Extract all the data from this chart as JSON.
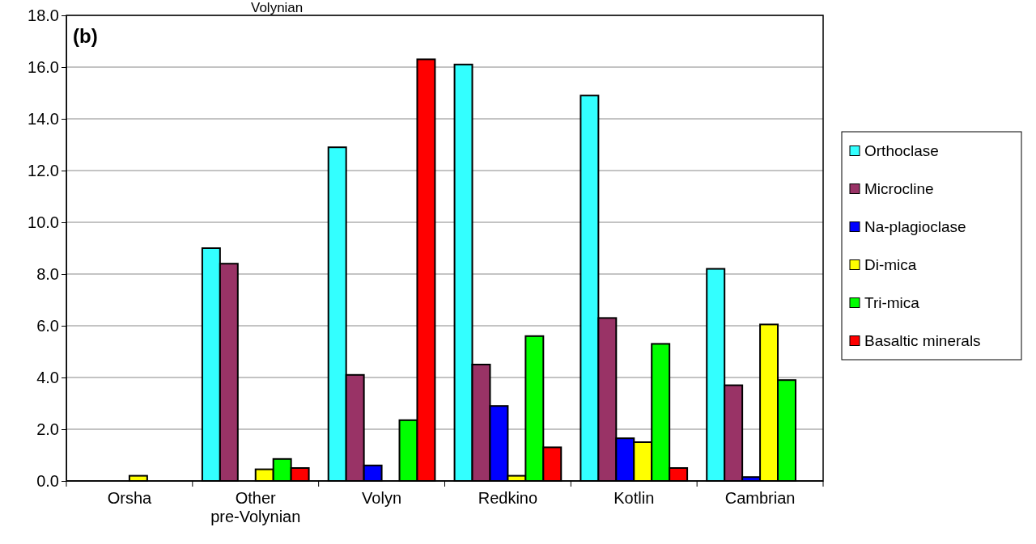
{
  "chart_data": {
    "type": "bar",
    "categories": [
      "Orsha",
      "Other pre-Volynian",
      "Volyn",
      "Redkino",
      "Kotlin",
      "Cambrian"
    ],
    "series": [
      {
        "name": "Orthoclase",
        "color": "#33ffff",
        "values": [
          0,
          9.0,
          12.9,
          16.1,
          14.9,
          8.2
        ]
      },
      {
        "name": "Microcline",
        "color": "#993366",
        "values": [
          0,
          8.4,
          4.1,
          4.5,
          6.3,
          3.7
        ]
      },
      {
        "name": "Na-plagioclase",
        "color": "#0000ff",
        "values": [
          0,
          0,
          0.6,
          2.9,
          1.65,
          0.15
        ]
      },
      {
        "name": "Di-mica",
        "color": "#ffff00",
        "values": [
          0.2,
          0.45,
          0,
          0.2,
          1.5,
          6.05
        ]
      },
      {
        "name": "Tri-mica",
        "color": "#00ff00",
        "values": [
          0,
          0.85,
          2.35,
          5.6,
          5.3,
          3.9
        ]
      },
      {
        "name": "Basaltic minerals",
        "color": "#ff0000",
        "values": [
          0,
          0.5,
          16.3,
          1.3,
          0.5,
          0
        ]
      }
    ],
    "ylim": [
      0,
      18
    ],
    "yticks": [
      {
        "value": 0,
        "label": "0.0"
      },
      {
        "value": 2,
        "label": "2.0"
      },
      {
        "value": 4,
        "label": "4.0"
      },
      {
        "value": 6,
        "label": "6.0"
      },
      {
        "value": 8,
        "label": "8.0"
      },
      {
        "value": 10,
        "label": "10.0"
      },
      {
        "value": 12,
        "label": "12.0"
      },
      {
        "value": 14,
        "label": "14.0"
      },
      {
        "value": 16,
        "label": "16.0"
      },
      {
        "value": 18,
        "label": "18.0"
      }
    ],
    "grid": "y",
    "legend": "right",
    "annotations": [
      "(b)",
      "Volynian"
    ]
  }
}
